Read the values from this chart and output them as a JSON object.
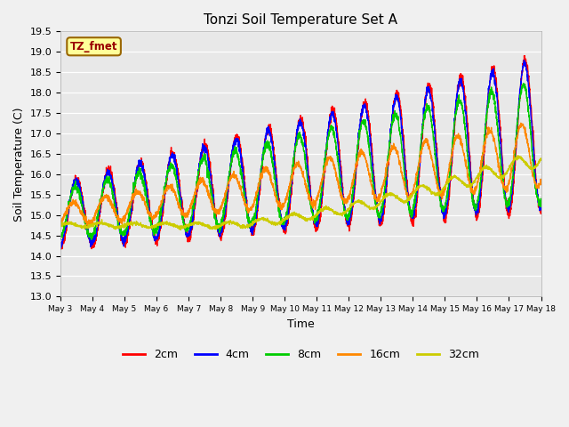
{
  "title": "Tonzi Soil Temperature Set A",
  "xlabel": "Time",
  "ylabel": "Soil Temperature (C)",
  "ylim": [
    13.0,
    19.5
  ],
  "xlim": [
    0,
    15
  ],
  "yticks": [
    13.0,
    13.5,
    14.0,
    14.5,
    15.0,
    15.5,
    16.0,
    16.5,
    17.0,
    17.5,
    18.0,
    18.5,
    19.0,
    19.5
  ],
  "xtick_labels": [
    "May 3",
    "May 4",
    "May 5",
    "May 6",
    "May 7",
    "May 8",
    "May 9",
    "May 10",
    "May 11",
    "May 12",
    "May 13",
    "May 14",
    "May 15",
    "May 16",
    "May 17",
    "May 18"
  ],
  "colors": {
    "2cm": "#ff0000",
    "4cm": "#0000ff",
    "8cm": "#00cc00",
    "16cm": "#ff8800",
    "32cm": "#cccc00"
  },
  "annotation_label": "TZ_fmet",
  "annotation_color": "#990000",
  "annotation_bg": "#ffff99",
  "annotation_edge": "#996600",
  "fig_bg": "#f0f0f0",
  "plot_bg": "#e8e8e8",
  "grid_color": "#ffffff",
  "linewidth": 1.0
}
